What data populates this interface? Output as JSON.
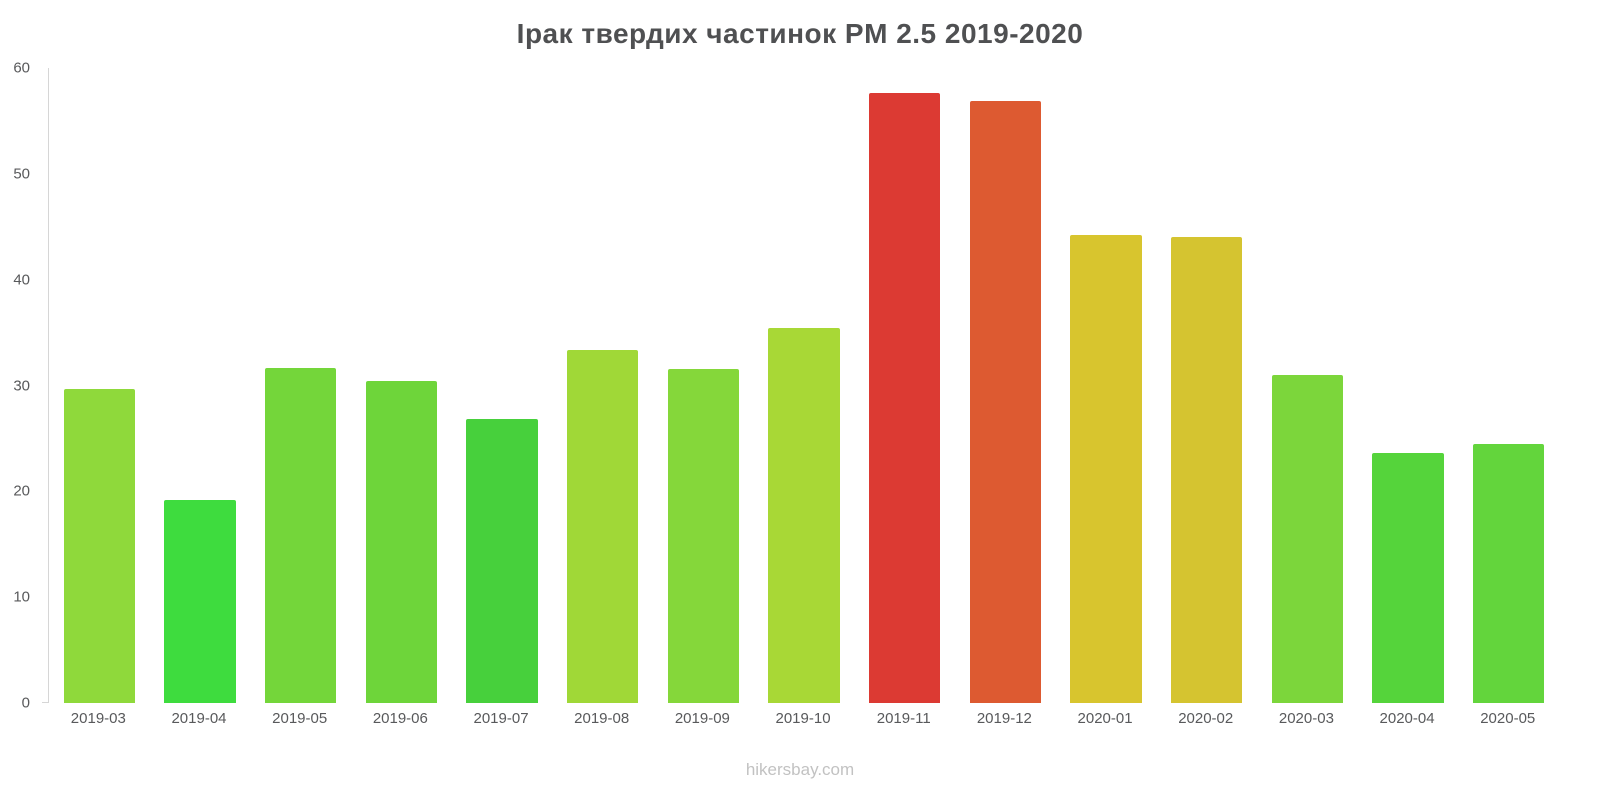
{
  "title": "Ірак твердих частинок PM 2.5 2019-2020",
  "source": "hikersbay.com",
  "chart_data": {
    "type": "bar",
    "title": "Ірак твердих частинок PM 2.5 2019-2020",
    "categories": [
      "2019-03",
      "2019-04",
      "2019-05",
      "2019-06",
      "2019-07",
      "2019-08",
      "2019-09",
      "2019-10",
      "2019-11",
      "2019-12",
      "2020-01",
      "2020-02",
      "2020-03",
      "2020-04",
      "2020-05"
    ],
    "values": [
      29.7,
      19.2,
      31.7,
      30.4,
      26.8,
      33.4,
      31.6,
      35.4,
      57.6,
      56.9,
      44.2,
      44.0,
      31.0,
      23.6,
      24.5
    ],
    "bar_colors": [
      "#8fd93b",
      "#3edc3e",
      "#74d63a",
      "#6ed53a",
      "#47d03c",
      "#a0d837",
      "#85d73a",
      "#a8d836",
      "#dc3a33",
      "#dd5a31",
      "#d8c52e",
      "#d5c430",
      "#7cd63b",
      "#55d43b",
      "#63d53c"
    ],
    "xlabel": "",
    "ylabel": "",
    "ylim": [
      0,
      60
    ],
    "yticks": [
      0,
      10,
      20,
      30,
      40,
      50,
      60
    ],
    "grid": false,
    "legend": false
  },
  "colors": {
    "title": "#4f5052",
    "axis_label": "#58595b",
    "axis_line": "#d6d6d6",
    "source": "#c2c2c2",
    "background": "#ffffff"
  }
}
